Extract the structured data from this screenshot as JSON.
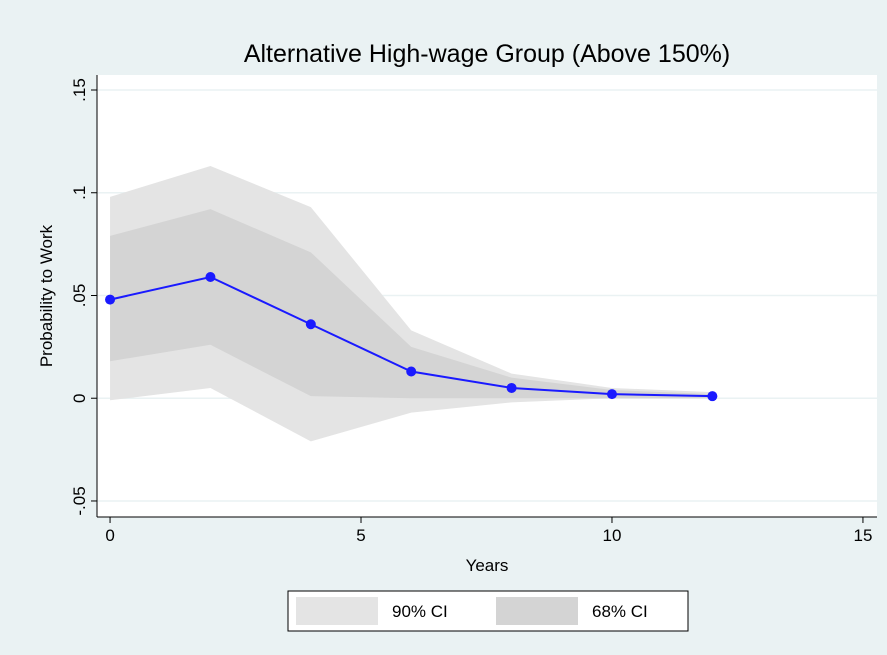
{
  "chart_data": {
    "type": "line",
    "title": "Alternative High-wage Group (Above 150%)",
    "x_label": "Years",
    "y_label": "Probability to Work",
    "x": [
      0,
      2,
      4,
      6,
      8,
      10,
      12
    ],
    "values": [
      0.048,
      0.059,
      0.036,
      0.013,
      0.005,
      0.002,
      0.001
    ],
    "color": "#1a1aff",
    "bands": [
      {
        "name": "90% CI",
        "color": "#e4e4e4",
        "lower": [
          -0.001,
          0.005,
          -0.021,
          -0.007,
          -0.002,
          0.0,
          0.0
        ],
        "upper": [
          0.098,
          0.113,
          0.093,
          0.033,
          0.012,
          0.005,
          0.003
        ]
      },
      {
        "name": "68% CI",
        "color": "#d4d4d4",
        "lower": [
          0.018,
          0.026,
          0.001,
          0.0,
          0.0,
          0.0,
          0.0
        ],
        "upper": [
          0.079,
          0.092,
          0.071,
          0.025,
          0.01,
          0.004,
          0.002
        ]
      }
    ],
    "xlim": [
      -0.26,
      15.28
    ],
    "xticks": [
      0,
      5,
      10,
      15
    ],
    "ylim": [
      -0.0578,
      0.1573
    ],
    "yticks": [
      {
        "value": -0.05,
        "label": "-.05"
      },
      0,
      {
        "value": 0.05,
        "label": ".05"
      },
      {
        "value": 0.1,
        "label": ".1"
      },
      {
        "value": 0.15,
        "label": ".15"
      }
    ],
    "grid": true,
    "legend": "bottom"
  }
}
